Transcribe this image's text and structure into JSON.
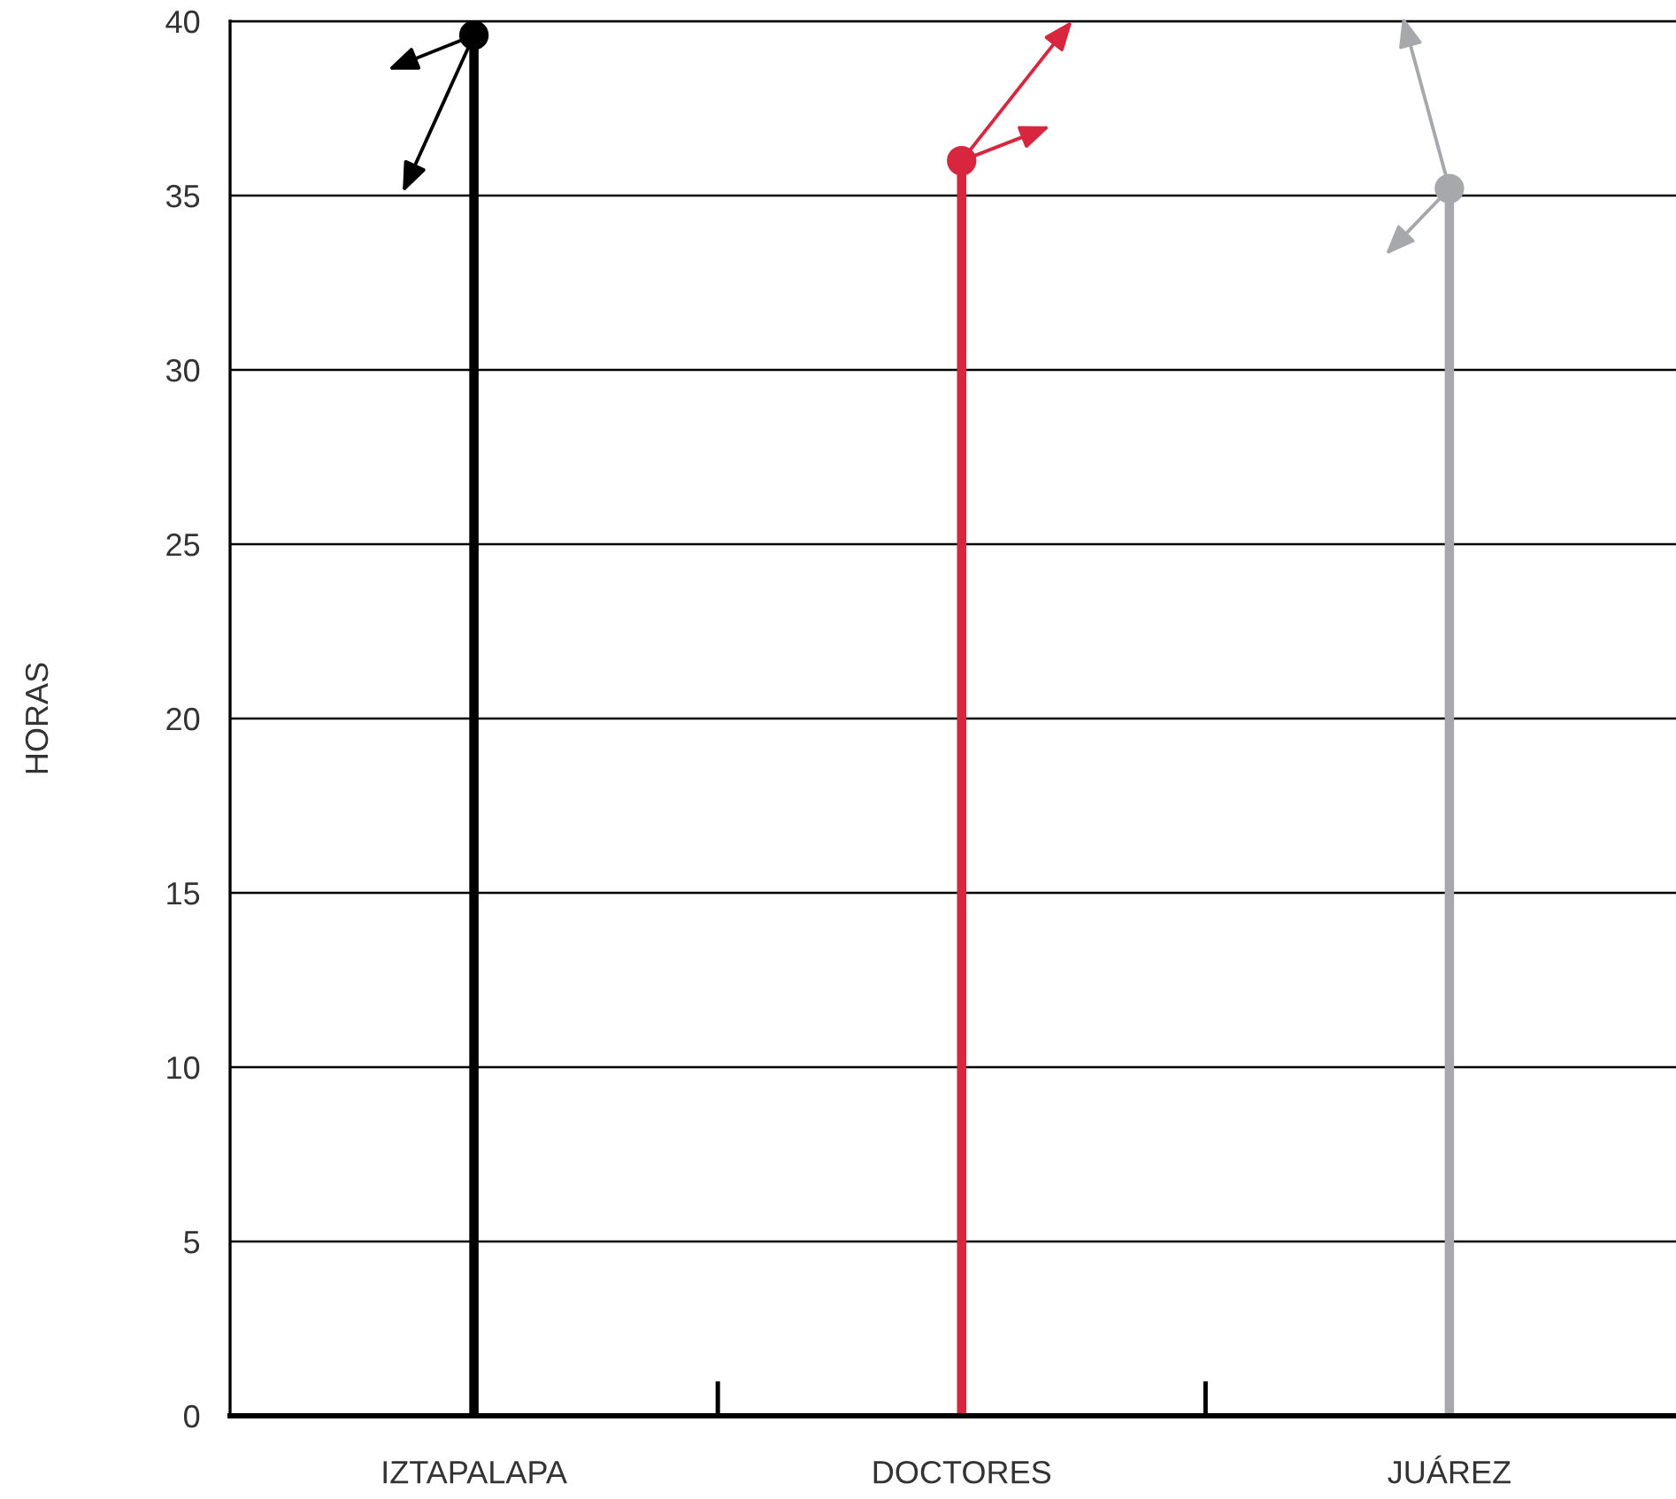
{
  "chart_data": {
    "type": "lollipop",
    "ylabel": "HORAS",
    "categories": [
      "IZTAPALAPA",
      "DOCTORES",
      "JUÁREZ"
    ],
    "values": [
      39.6,
      36.0,
      35.2
    ],
    "colors": [
      "#000000",
      "#d7263d",
      "#a7a8ab"
    ],
    "ylim": [
      0,
      40
    ],
    "yticks": [
      0,
      5,
      10,
      15,
      20,
      25,
      30,
      35,
      40
    ],
    "grid": "y",
    "marker": "circle"
  }
}
